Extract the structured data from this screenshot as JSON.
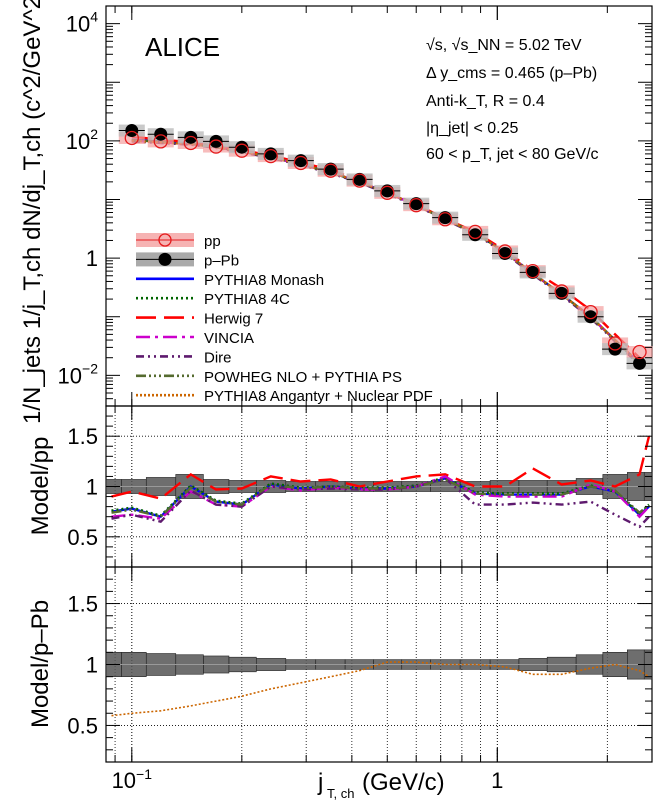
{
  "chart_data": [
    {
      "type": "scatter",
      "panel": "main",
      "title": "ALICE",
      "xlabel_main": "j",
      "xlabel_sub": "T, ch",
      "xlabel_unit": " (GeV/c)",
      "ylabel": "1/N_jets 1/j_T,ch dN/dj_T,ch (c^2/GeV^2)",
      "xscale": "log",
      "yscale": "log",
      "xlim": [
        0.085,
        2.65
      ],
      "ylim": [
        0.003,
        20000
      ],
      "x_ticks": [
        {
          "value": 0.1,
          "label": "10",
          "exp": "−1"
        },
        {
          "value": 1,
          "label": "1",
          "exp": ""
        }
      ],
      "y_ticks": [
        {
          "value": 0.01,
          "label": "10",
          "exp": "−2"
        },
        {
          "value": 1,
          "label": "1",
          "exp": ""
        },
        {
          "value": 100,
          "label": "10",
          "exp": "2"
        },
        {
          "value": 10000,
          "label": "10",
          "exp": "4"
        }
      ],
      "info": {
        "line1": "√s, √s_NN = 5.02 TeV",
        "line2": "Δ y_cms = 0.465 (p–Pb)",
        "line3": "Anti-k_T, R = 0.4",
        "line4": "|η_jet| < 0.25",
        "line5": "60 < p_T, jet < 80 GeV/c"
      },
      "x": [
        0.1,
        0.12,
        0.145,
        0.17,
        0.2,
        0.24,
        0.29,
        0.35,
        0.42,
        0.5,
        0.6,
        0.72,
        0.87,
        1.05,
        1.25,
        1.5,
        1.8,
        2.1,
        2.45
      ],
      "series": [
        {
          "name": "pp",
          "color": "#e41a1c",
          "marker": "open-circle",
          "values": [
            112,
            98,
            92,
            80,
            68,
            55,
            42,
            31,
            21,
            13,
            8,
            4.6,
            2.8,
            1.3,
            0.6,
            0.27,
            0.12,
            0.035,
            0.025
          ]
        },
        {
          "name": "p–Pb",
          "color": "#000000",
          "marker": "filled-circle",
          "values": [
            150,
            130,
            115,
            98,
            78,
            60,
            46,
            33,
            22,
            14,
            8.5,
            4.9,
            2.5,
            1.2,
            0.57,
            0.25,
            0.1,
            0.028,
            0.016
          ]
        }
      ],
      "models": [
        {
          "name": "PYTHIA8 Monash",
          "color": "#0000ff",
          "dash": "",
          "values": [
            105,
            98,
            90,
            79,
            67,
            53,
            40,
            29,
            20,
            13,
            8,
            4.6,
            2.7,
            1.25,
            0.55,
            0.24,
            0.1,
            0.04,
            0.016
          ]
        },
        {
          "name": "PYTHIA8 4C",
          "color": "#006400",
          "dash": "2,3",
          "values": [
            104,
            97,
            89,
            78,
            66,
            53,
            40,
            29,
            20,
            13,
            8,
            4.6,
            2.7,
            1.25,
            0.55,
            0.24,
            0.1,
            0.04,
            0.016
          ]
        },
        {
          "name": "Herwig 7",
          "color": "#ff0000",
          "dash": "20,8",
          "values": [
            118,
            105,
            95,
            82,
            70,
            56,
            43,
            32,
            21,
            13.5,
            8.3,
            4.7,
            2.8,
            1.35,
            0.62,
            0.3,
            0.13,
            0.05,
            0.02
          ]
        },
        {
          "name": "VINCIA",
          "color": "#cc00cc",
          "dash": "14,5,3,5",
          "values": [
            100,
            95,
            88,
            78,
            66,
            52,
            40,
            29,
            20,
            13,
            8,
            4.6,
            2.7,
            1.25,
            0.55,
            0.24,
            0.1,
            0.04,
            0.016
          ]
        },
        {
          "name": "Dire",
          "color": "#5e1a6e",
          "dash": "8,4,2,4,2,4",
          "values": [
            98,
            92,
            86,
            76,
            64,
            51,
            39,
            28,
            19.5,
            12.5,
            7.8,
            4.5,
            2.6,
            1.2,
            0.53,
            0.23,
            0.095,
            0.038,
            0.015
          ]
        },
        {
          "name": "POWHEG NLO + PYTHIA PS",
          "color": "#556b2f",
          "dash": "10,3,2,3,2,3,2,3",
          "values": [
            103,
            96,
            89,
            78,
            66,
            53,
            40,
            29,
            20,
            13,
            8,
            4.6,
            2.7,
            1.25,
            0.55,
            0.24,
            0.1,
            0.04,
            0.016
          ]
        },
        {
          "name": "PYTHIA8 Angantyr + Nuclear PDF",
          "color": "#cc6600",
          "dash": "2,2",
          "values": [
            100,
            94,
            88,
            78,
            66,
            53,
            40,
            29,
            20,
            13,
            8,
            4.6,
            2.7,
            1.25,
            0.55,
            0.24,
            0.1,
            0.04,
            0.016
          ]
        }
      ],
      "legend": [
        {
          "label": "pp",
          "kind": "pp"
        },
        {
          "label": "p–Pb",
          "kind": "ppb"
        },
        {
          "label": "PYTHIA8 Monash",
          "kind": "line",
          "model": 0
        },
        {
          "label": "PYTHIA8 4C",
          "kind": "line",
          "model": 1
        },
        {
          "label": "Herwig 7",
          "kind": "line",
          "model": 2
        },
        {
          "label": "VINCIA",
          "kind": "line",
          "model": 3
        },
        {
          "label": "Dire",
          "kind": "line",
          "model": 4
        },
        {
          "label": "POWHEG NLO + PYTHIA PS",
          "kind": "line",
          "model": 5
        },
        {
          "label": "PYTHIA8 Angantyr + Nuclear PDF",
          "kind": "line",
          "model": 6
        }
      ]
    },
    {
      "type": "line",
      "panel": "ratio_pp",
      "ylabel": "Model/pp",
      "ylim": [
        0.2,
        1.8
      ],
      "y_ticks": [
        {
          "value": 0.5,
          "label": "0.5"
        },
        {
          "value": 1,
          "label": "1"
        },
        {
          "value": 1.5,
          "label": "1.5"
        }
      ],
      "x": [
        0.088,
        0.1,
        0.12,
        0.145,
        0.17,
        0.2,
        0.24,
        0.29,
        0.35,
        0.42,
        0.5,
        0.6,
        0.72,
        0.87,
        1.05,
        1.25,
        1.5,
        1.8,
        2.1,
        2.45,
        2.6
      ],
      "band_values": [
        1,
        1,
        1,
        1,
        1,
        1,
        1,
        1,
        1,
        1,
        1,
        1,
        1,
        1,
        1,
        1,
        1,
        1,
        1,
        1,
        1
      ],
      "band_half_heights": [
        0.07,
        0.07,
        0.09,
        0.12,
        0.07,
        0.06,
        0.06,
        0.05,
        0.05,
        0.05,
        0.05,
        0.05,
        0.05,
        0.05,
        0.06,
        0.06,
        0.06,
        0.08,
        0.12,
        0.14,
        0.14
      ],
      "series": [
        {
          "name": "PYTHIA8 Monash",
          "values": [
            0.75,
            0.78,
            0.7,
            1.0,
            0.85,
            0.82,
            1.02,
            0.98,
            1.0,
            0.98,
            0.98,
            1.0,
            1.08,
            0.93,
            0.92,
            0.92,
            0.92,
            1.0,
            0.95,
            0.72,
            0.8
          ]
        },
        {
          "name": "PYTHIA8 4C",
          "values": [
            0.76,
            0.79,
            0.71,
            1.01,
            0.86,
            0.83,
            1.03,
            0.99,
            1.0,
            0.99,
            0.99,
            1.01,
            1.09,
            0.94,
            0.93,
            0.93,
            0.93,
            1.01,
            0.95,
            0.73,
            0.82
          ]
        },
        {
          "name": "Herwig 7",
          "values": [
            0.9,
            0.95,
            0.88,
            1.12,
            0.97,
            0.98,
            1.1,
            1.05,
            1.07,
            1.0,
            1.05,
            1.1,
            1.12,
            1.0,
            1.0,
            1.18,
            1.02,
            1.06,
            1.0,
            1.12,
            1.5
          ]
        },
        {
          "name": "VINCIA",
          "values": [
            0.7,
            0.72,
            0.68,
            0.95,
            0.82,
            0.8,
            1.0,
            0.96,
            0.99,
            0.97,
            0.97,
            1.0,
            1.1,
            0.92,
            0.9,
            0.9,
            0.9,
            1.02,
            0.95,
            0.7,
            0.8
          ]
        },
        {
          "name": "Dire",
          "values": [
            0.68,
            0.72,
            0.65,
            0.96,
            0.82,
            0.8,
            1.0,
            0.97,
            0.98,
            0.97,
            0.97,
            1.0,
            1.08,
            0.82,
            0.82,
            0.84,
            0.82,
            0.85,
            0.72,
            0.6,
            0.7
          ]
        },
        {
          "name": "POWHEG NLO + PYTHIA PS",
          "values": [
            0.74,
            0.77,
            0.7,
            0.99,
            0.85,
            0.82,
            1.02,
            0.98,
            1.0,
            0.98,
            0.98,
            1.0,
            1.07,
            0.93,
            0.92,
            0.92,
            0.92,
            1.0,
            0.96,
            0.74,
            0.82
          ]
        }
      ]
    },
    {
      "type": "line",
      "panel": "ratio_ppb",
      "ylabel": "Model/p–Pb",
      "ylim": [
        0.2,
        1.8
      ],
      "y_ticks": [
        {
          "value": 0.5,
          "label": "0.5"
        },
        {
          "value": 1,
          "label": "1"
        },
        {
          "value": 1.5,
          "label": "1.5"
        }
      ],
      "x": [
        0.088,
        0.1,
        0.12,
        0.145,
        0.17,
        0.2,
        0.24,
        0.29,
        0.35,
        0.42,
        0.5,
        0.6,
        0.72,
        0.87,
        1.05,
        1.25,
        1.5,
        1.8,
        2.1,
        2.45,
        2.6
      ],
      "band_values": [
        1,
        1,
        1,
        1,
        1,
        1,
        1,
        1,
        1,
        1,
        1,
        1,
        1,
        1,
        1,
        1,
        1,
        1,
        1,
        1,
        1
      ],
      "band_half_heights": [
        0.1,
        0.1,
        0.09,
        0.08,
        0.07,
        0.06,
        0.05,
        0.04,
        0.04,
        0.04,
        0.04,
        0.04,
        0.04,
        0.04,
        0.04,
        0.05,
        0.06,
        0.08,
        0.1,
        0.12,
        0.12
      ],
      "series": [
        {
          "name": "PYTHIA8 Angantyr + Nuclear PDF",
          "values": [
            0.58,
            0.6,
            0.62,
            0.66,
            0.7,
            0.74,
            0.8,
            0.85,
            0.9,
            0.95,
            1.02,
            1.02,
            1.0,
            1.0,
            0.98,
            0.92,
            0.92,
            0.97,
            1.0,
            0.95,
            0.9
          ]
        }
      ]
    }
  ]
}
